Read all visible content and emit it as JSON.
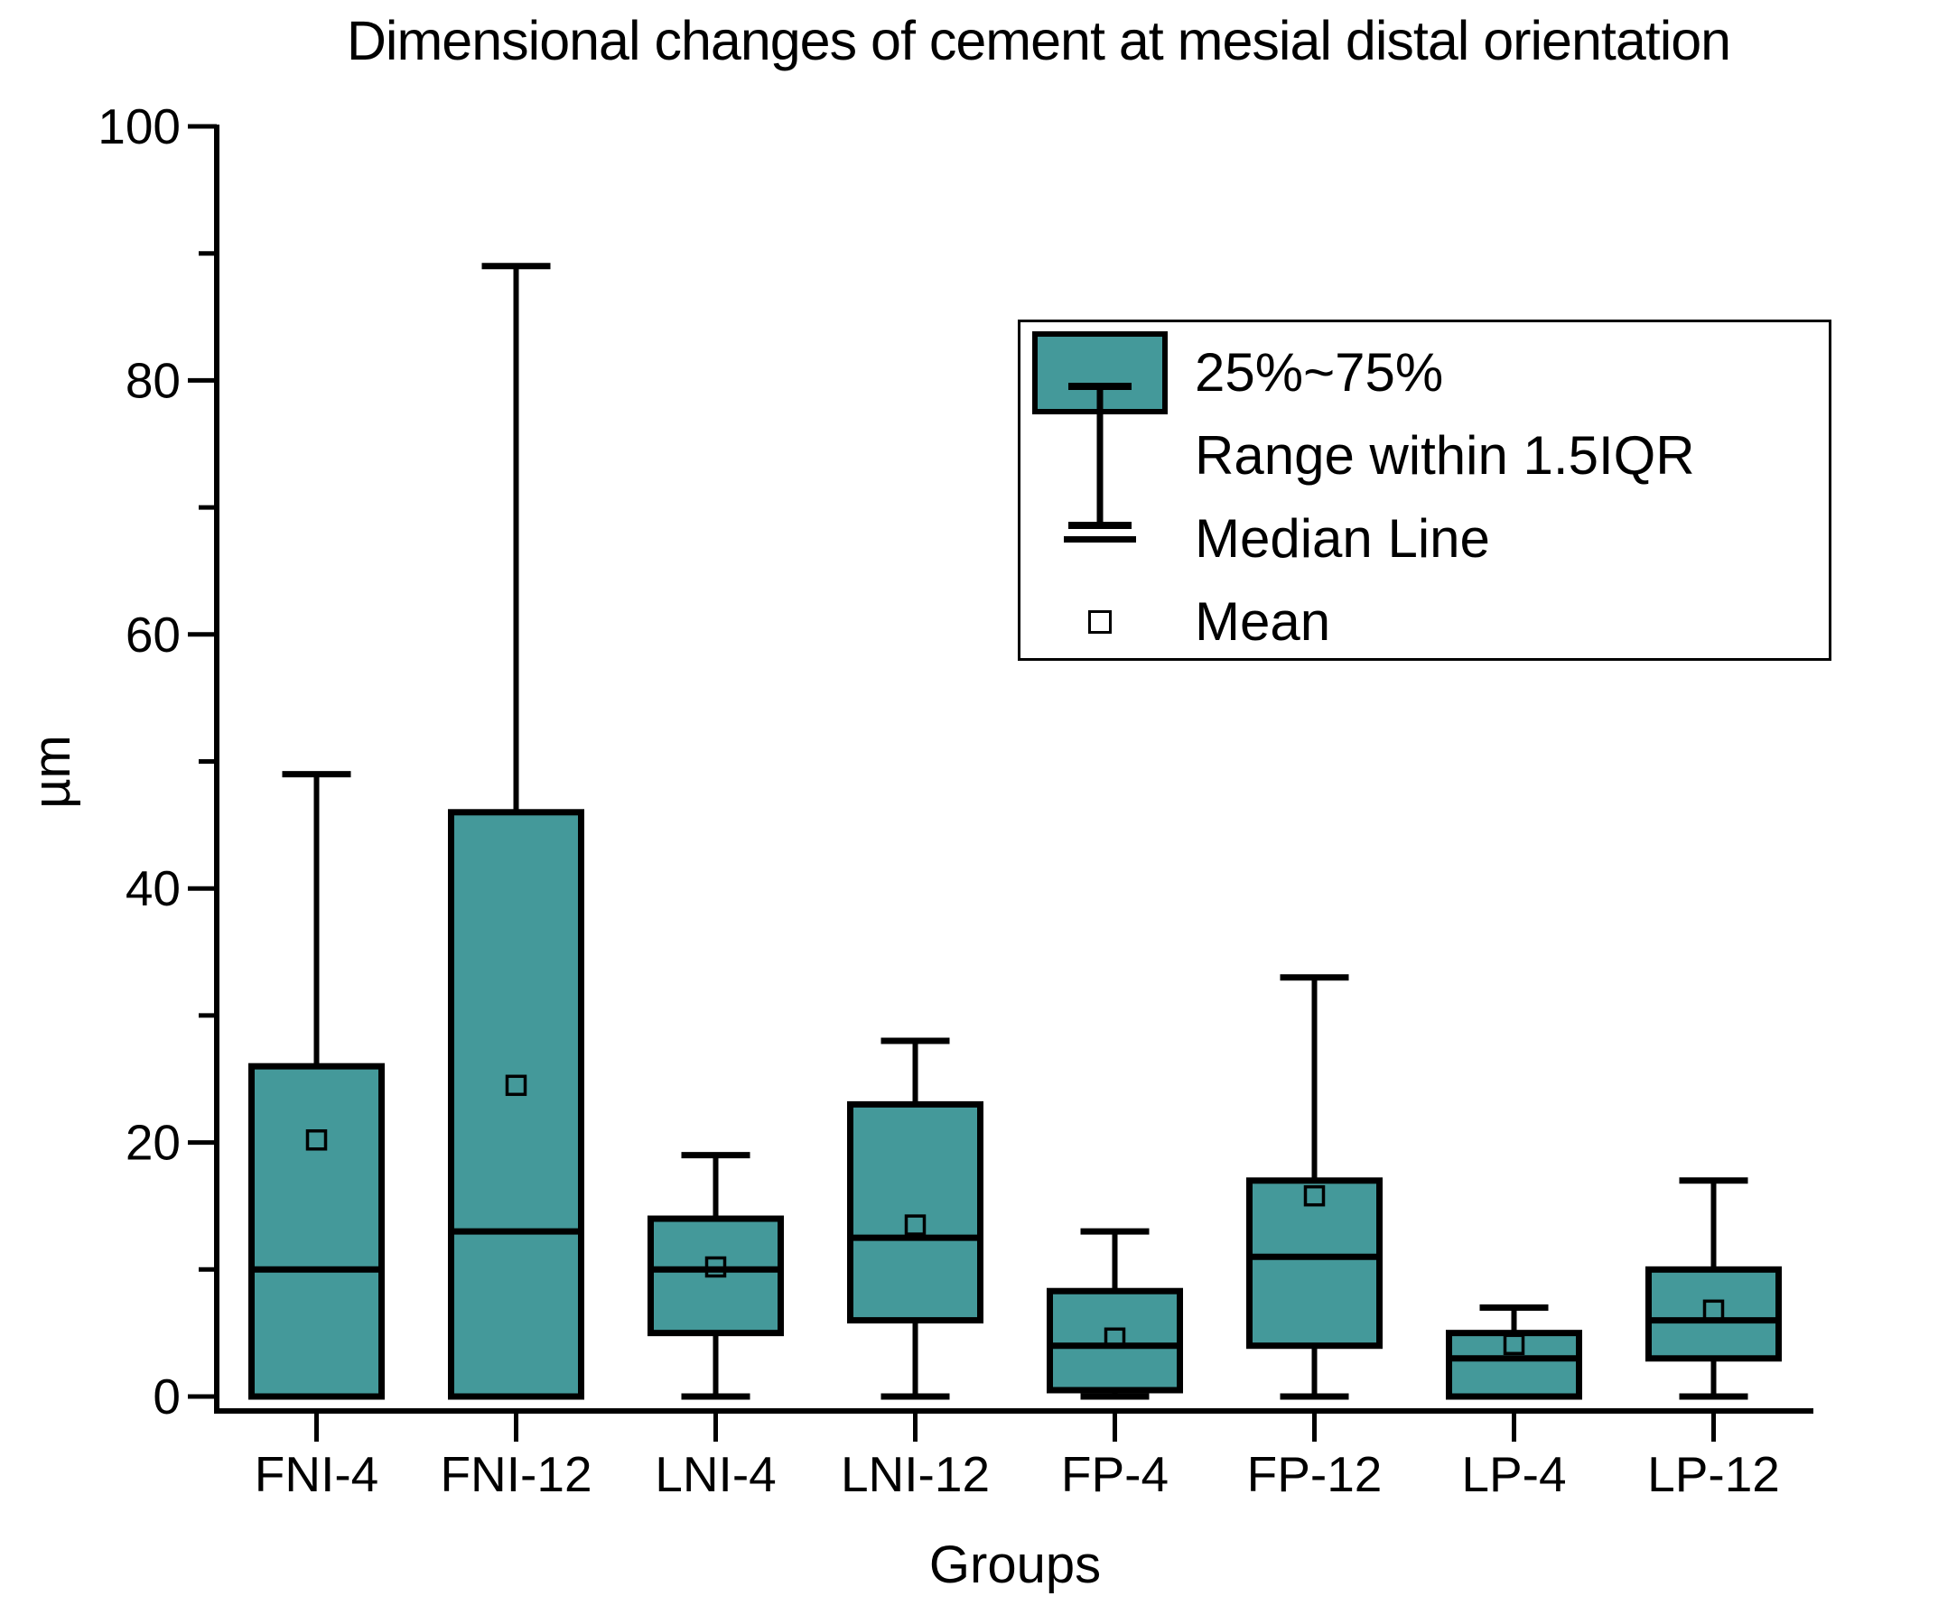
{
  "chart_data": {
    "type": "box",
    "title": "Dimensional changes of cement at mesial distal orientation",
    "xlabel": "Groups",
    "ylabel": "µm",
    "ylim": [
      0,
      100
    ],
    "ytick_step": 20,
    "yminor_step": 10,
    "grid": false,
    "legend_position": "upper right",
    "legend": [
      {
        "label": "25%~75%",
        "glyph": "box-swatch"
      },
      {
        "label": "Range within 1.5IQR",
        "glyph": "whisker-icon"
      },
      {
        "label": "Median Line",
        "glyph": "median-line-icon"
      },
      {
        "label": "Mean",
        "glyph": "mean-square-icon"
      }
    ],
    "colors": {
      "box_fill": "#44999a",
      "line": "#000000",
      "background": "#ffffff"
    },
    "categories": [
      "FNI-4",
      "FNI-12",
      "LNI-4",
      "LNI-12",
      "FP-4",
      "FP-12",
      "LP-4",
      "LP-12"
    ],
    "series": [
      {
        "group": "FNI-4",
        "whisker_low": 0,
        "q1": 0,
        "median": 10,
        "q3": 26,
        "whisker_high": 49,
        "mean": 20.2
      },
      {
        "group": "FNI-12",
        "whisker_low": 0,
        "q1": 0,
        "median": 13,
        "q3": 46,
        "whisker_high": 89,
        "mean": 24.5
      },
      {
        "group": "LNI-4",
        "whisker_low": 0,
        "q1": 5,
        "median": 10,
        "q3": 14,
        "whisker_high": 19,
        "mean": 10.2
      },
      {
        "group": "LNI-12",
        "whisker_low": 0,
        "q1": 6,
        "median": 12.5,
        "q3": 23,
        "whisker_high": 28,
        "mean": 13.5
      },
      {
        "group": "FP-4",
        "whisker_low": 0,
        "q1": 0.5,
        "median": 4,
        "q3": 8.3,
        "whisker_high": 13,
        "mean": 4.6
      },
      {
        "group": "FP-12",
        "whisker_low": 0,
        "q1": 4,
        "median": 11,
        "q3": 17,
        "whisker_high": 33,
        "mean": 15.8
      },
      {
        "group": "LP-4",
        "whisker_low": 0,
        "q1": 0,
        "median": 3,
        "q3": 5,
        "whisker_high": 7,
        "mean": 4.1
      },
      {
        "group": "LP-12",
        "whisker_low": 0,
        "q1": 3,
        "median": 6,
        "q3": 10,
        "whisker_high": 17,
        "mean": 6.8
      }
    ]
  }
}
